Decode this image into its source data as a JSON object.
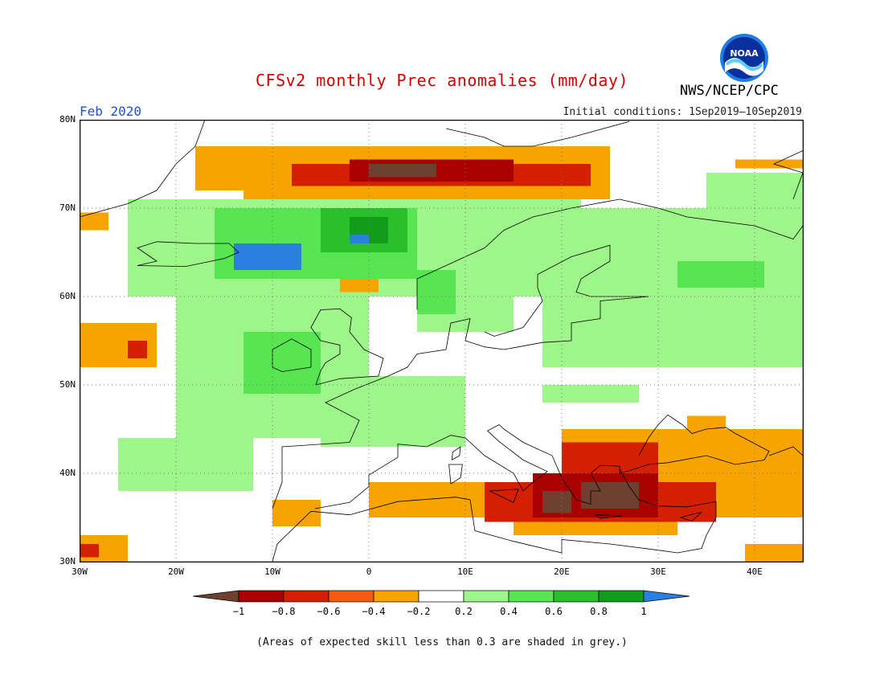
{
  "title": "CFSv2 monthly Prec anomalies (mm/day)",
  "forecast_month": "Feb 2020",
  "initial_conditions": "Initial conditions: 1Sep2019–10Sep2019",
  "agency": "NWS/NCEP/CPC",
  "logo": {
    "icon": "noaa-logo",
    "text": "NOAA"
  },
  "footnote": "(Areas of expected skill less than 0.3 are shaded in grey.)",
  "map_extent": {
    "lon_min": -30,
    "lon_max": 45,
    "lat_min": 30,
    "lat_max": 80
  },
  "lat_ticks": [
    "80N",
    "70N",
    "60N",
    "50N",
    "40N",
    "30N"
  ],
  "lon_ticks": [
    "30W",
    "20W",
    "10W",
    "0",
    "10E",
    "20E",
    "30E",
    "40E"
  ],
  "colorbar": {
    "labels": [
      "−1",
      "−0.8",
      "−0.6",
      "−0.4",
      "−0.2",
      "0.2",
      "0.4",
      "0.6",
      "0.8",
      "1"
    ],
    "colors": [
      "#6e4030",
      "#a90000",
      "#d42000",
      "#f55a12",
      "#f7a300",
      "#ffffff",
      "#9ef58a",
      "#57e552",
      "#2bbf2b",
      "#119c1c",
      "#2b7fe0"
    ]
  },
  "anomaly_regions": [
    {
      "level": "#f7a300",
      "lon": [
        -18,
        -5
      ],
      "lat": [
        72,
        77
      ]
    },
    {
      "level": "#f7a300",
      "lon": [
        -13,
        25
      ],
      "lat": [
        71,
        77
      ]
    },
    {
      "level": "#d42000",
      "lon": [
        -8,
        23
      ],
      "lat": [
        72.5,
        75
      ]
    },
    {
      "level": "#a90000",
      "lon": [
        -2,
        15
      ],
      "lat": [
        73,
        75.5
      ]
    },
    {
      "level": "#6e4030",
      "lon": [
        0,
        7
      ],
      "lat": [
        73.5,
        75
      ]
    },
    {
      "level": "#f7a300",
      "lon": [
        38,
        45
      ],
      "lat": [
        74.5,
        75.5
      ]
    },
    {
      "level": "#9ef58a",
      "lon": [
        -25,
        22
      ],
      "lat": [
        60,
        71
      ]
    },
    {
      "level": "#57e552",
      "lon": [
        -16,
        5
      ],
      "lat": [
        62,
        70
      ]
    },
    {
      "level": "#2bbf2b",
      "lon": [
        -5,
        4
      ],
      "lat": [
        65,
        70
      ]
    },
    {
      "level": "#119c1c",
      "lon": [
        -2,
        2
      ],
      "lat": [
        66,
        69
      ]
    },
    {
      "level": "#2b7fe0",
      "lon": [
        -14,
        -7
      ],
      "lat": [
        63,
        66
      ]
    },
    {
      "level": "#2b7fe0",
      "lon": [
        -2,
        0
      ],
      "lat": [
        66,
        67
      ]
    },
    {
      "level": "#9ef58a",
      "lon": [
        5,
        15
      ],
      "lat": [
        56,
        65
      ]
    },
    {
      "level": "#57e552",
      "lon": [
        5,
        9
      ],
      "lat": [
        58,
        63
      ]
    },
    {
      "level": "#9ef58a",
      "lon": [
        18,
        45
      ],
      "lat": [
        52,
        70
      ]
    },
    {
      "level": "#9ef58a",
      "lon": [
        35,
        45
      ],
      "lat": [
        67,
        74
      ]
    },
    {
      "level": "#57e552",
      "lon": [
        32,
        41
      ],
      "lat": [
        61,
        64
      ]
    },
    {
      "level": "#9ef58a",
      "lon": [
        -20,
        0
      ],
      "lat": [
        44,
        60
      ]
    },
    {
      "level": "#57e552",
      "lon": [
        -13,
        -5
      ],
      "lat": [
        49,
        56
      ]
    },
    {
      "level": "#9ef58a",
      "lon": [
        -5,
        10
      ],
      "lat": [
        43,
        51
      ]
    },
    {
      "level": "#9ef58a",
      "lon": [
        -26,
        -12
      ],
      "lat": [
        38,
        44
      ]
    },
    {
      "level": "#9ef58a",
      "lon": [
        18,
        28
      ],
      "lat": [
        48,
        50
      ]
    },
    {
      "level": "#f7a300",
      "lon": [
        -3,
        1
      ],
      "lat": [
        60.5,
        62
      ]
    },
    {
      "level": "#f7a300",
      "lon": [
        -30,
        -22
      ],
      "lat": [
        52,
        57
      ]
    },
    {
      "level": "#d42000",
      "lon": [
        -25,
        -23
      ],
      "lat": [
        53,
        55
      ]
    },
    {
      "level": "#f7a300",
      "lon": [
        -30,
        -27
      ],
      "lat": [
        67.5,
        69.5
      ]
    },
    {
      "level": "#f7a300",
      "lon": [
        -30,
        -25
      ],
      "lat": [
        30,
        33
      ]
    },
    {
      "level": "#d42000",
      "lon": [
        -30,
        -28
      ],
      "lat": [
        30.5,
        32
      ]
    },
    {
      "level": "#f7a300",
      "lon": [
        -10,
        -5
      ],
      "lat": [
        34,
        37
      ]
    },
    {
      "level": "#f7a300",
      "lon": [
        0,
        45
      ],
      "lat": [
        35,
        39
      ]
    },
    {
      "level": "#f7a300",
      "lon": [
        20,
        45
      ],
      "lat": [
        39,
        45
      ]
    },
    {
      "level": "#f7a300",
      "lon": [
        15,
        32
      ],
      "lat": [
        33,
        35
      ]
    },
    {
      "level": "#f7a300",
      "lon": [
        33,
        37
      ],
      "lat": [
        45,
        46.5
      ]
    },
    {
      "level": "#d42000",
      "lon": [
        20,
        30
      ],
      "lat": [
        39,
        43.5
      ]
    },
    {
      "level": "#d42000",
      "lon": [
        12,
        36
      ],
      "lat": [
        34.5,
        39
      ]
    },
    {
      "level": "#a90000",
      "lon": [
        17,
        30
      ],
      "lat": [
        35,
        40
      ]
    },
    {
      "level": "#6e4030",
      "lon": [
        18,
        21
      ],
      "lat": [
        35.5,
        38
      ]
    },
    {
      "level": "#6e4030",
      "lon": [
        22,
        28
      ],
      "lat": [
        36,
        39
      ]
    },
    {
      "level": "#f7a300",
      "lon": [
        39,
        45
      ],
      "lat": [
        30,
        32
      ]
    }
  ]
}
